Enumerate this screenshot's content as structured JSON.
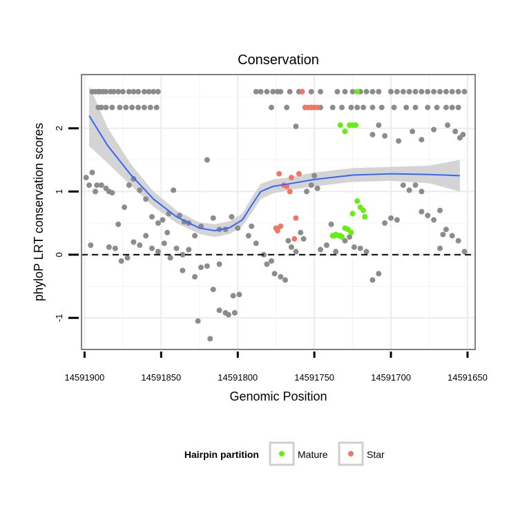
{
  "chart_data": {
    "type": "scatter",
    "title": "Conservation",
    "xlabel": "Genomic Position",
    "ylabel": "phyloP LRT conservation scores",
    "x_reversed": true,
    "xlim": [
      14591650,
      14591900
    ],
    "ylim": [
      -1.5,
      2.85
    ],
    "x_ticks": [
      14591900,
      14591850,
      14591800,
      14591750,
      14591700,
      14591650
    ],
    "x_tick_labels": [
      "14591900",
      "14591850",
      "14591800",
      "14591750",
      "14591700",
      "14591650"
    ],
    "y_ticks": [
      2,
      1,
      0,
      -1
    ],
    "y_tick_labels": [
      "2",
      "1",
      "0",
      "-1"
    ],
    "reference_line": {
      "y": 0,
      "style": "dashed"
    },
    "legend": {
      "title": "Hairpin partition",
      "position": "bottom",
      "entries": [
        {
          "label": "Mature",
          "color": "#66ee11"
        },
        {
          "label": "Star",
          "color": "#ee7766"
        }
      ]
    },
    "colors": {
      "other": "#8c8c8c",
      "mature": "#66ee11",
      "star": "#ee7766",
      "smooth": "#3366ff",
      "band": "#cccccc",
      "panel_border": "#7f7f7f"
    },
    "smooth": {
      "x": [
        14591897,
        14591885,
        14591870,
        14591855,
        14591840,
        14591825,
        14591815,
        14591805,
        14591797,
        14591791,
        14591785,
        14591777,
        14591767,
        14591750,
        14591725,
        14591700,
        14591675,
        14591655
      ],
      "y": [
        2.2,
        1.73,
        1.27,
        0.88,
        0.6,
        0.42,
        0.38,
        0.43,
        0.55,
        0.78,
        1.0,
        1.08,
        1.12,
        1.19,
        1.26,
        1.28,
        1.27,
        1.25
      ],
      "lower": [
        1.72,
        1.45,
        1.1,
        0.76,
        0.5,
        0.33,
        0.28,
        0.33,
        0.45,
        0.66,
        0.88,
        0.97,
        1.02,
        1.08,
        1.15,
        1.17,
        1.13,
        1.0
      ],
      "upper": [
        2.68,
        2.01,
        1.44,
        1.0,
        0.7,
        0.51,
        0.48,
        0.53,
        0.65,
        0.9,
        1.12,
        1.19,
        1.22,
        1.3,
        1.37,
        1.39,
        1.41,
        1.5
      ]
    },
    "points": {
      "other": {
        "x": [
          14591895,
          14591893,
          14591891,
          14591890,
          14591888,
          14591886,
          14591883,
          14591881,
          14591878,
          14591875,
          14591871,
          14591868,
          14591865,
          14591861,
          14591858,
          14591855,
          14591852,
          14591891,
          14591889,
          14591886,
          14591882,
          14591877,
          14591873,
          14591869,
          14591865,
          14591861,
          14591857,
          14591853,
          14591899,
          14591897,
          14591895,
          14591892,
          14591889,
          14591886,
          14591884,
          14591882,
          14591878,
          14591874,
          14591871,
          14591868,
          14591864,
          14591860,
          14591856,
          14591852,
          14591849,
          14591845,
          14591842,
          14591838,
          14591835,
          14591832,
          14591828,
          14591824,
          14591820,
          14591816,
          14591812,
          14591808,
          14591804,
          14591800,
          14591896,
          14591893,
          14591884,
          14591880,
          14591876,
          14591872,
          14591868,
          14591864,
          14591860,
          14591856,
          14591852,
          14591848,
          14591844,
          14591840,
          14591836,
          14591832,
          14591828,
          14591824,
          14591820,
          14591816,
          14591812,
          14591808,
          14591803,
          14591799,
          14591846,
          14591836,
          14591826,
          14591818,
          14591812,
          14591806,
          14591802,
          14591793,
          14591791,
          14591788,
          14591783,
          14591781,
          14591778,
          14591776,
          14591772,
          14591769,
          14591767,
          14591765,
          14591762,
          14591759,
          14591757,
          14591755,
          14591752,
          14591750,
          14591748,
          14591746,
          14591742,
          14591739,
          14591736,
          14591733,
          14591730,
          14591727,
          14591724,
          14591720,
          14591716,
          14591712,
          14591708,
          14591704,
          14591700,
          14591696,
          14591692,
          14591688,
          14591684,
          14591680,
          14591676,
          14591672,
          14591668,
          14591664,
          14591660,
          14591656,
          14591652,
          14591788,
          14591785,
          14591781,
          14591777,
          14591774,
          14591772,
          14591766,
          14591760,
          14591758,
          14591752,
          14591746,
          14591735,
          14591730,
          14591725,
          14591720,
          14591716,
          14591712,
          14591708,
          14591700,
          14591696,
          14591692,
          14591688,
          14591684,
          14591680,
          14591676,
          14591672,
          14591668,
          14591664,
          14591660,
          14591656,
          14591652,
          14591778,
          14591768,
          14591762,
          14591756,
          14591752,
          14591746,
          14591738,
          14591732,
          14591726,
          14591722,
          14591718,
          14591712,
          14591706,
          14591698,
          14591690,
          14591684,
          14591676,
          14591670,
          14591664,
          14591660,
          14591656,
          14591712,
          14591708,
          14591704,
          14591695,
          14591686,
          14591680,
          14591672,
          14591663,
          14591658,
          14591655,
          14591653,
          14591680,
          14591668,
          14591666
        ],
        "y": [
          2.58,
          2.58,
          2.58,
          2.58,
          2.58,
          2.58,
          2.58,
          2.58,
          2.58,
          2.58,
          2.58,
          2.58,
          2.58,
          2.58,
          2.58,
          2.58,
          2.58,
          2.33,
          2.33,
          2.33,
          2.33,
          2.33,
          2.33,
          2.33,
          2.33,
          2.33,
          2.33,
          2.33,
          1.22,
          1.1,
          1.3,
          1.1,
          1.1,
          1.05,
          1.0,
          0.98,
          0.48,
          0.75,
          1.1,
          1.2,
          1.02,
          0.88,
          0.6,
          0.5,
          0.55,
          0.65,
          1.02,
          0.62,
          0.52,
          0.5,
          0.3,
          0.45,
          1.5,
          0.58,
          0.4,
          0.4,
          0.6,
          0.42,
          0.15,
          1.0,
          0.12,
          0.1,
          -0.1,
          -0.05,
          0.2,
          0.15,
          0.3,
          0.1,
          0.05,
          0.18,
          -0.05,
          0.1,
          -0.25,
          0.08,
          -0.35,
          -0.2,
          -0.18,
          -0.55,
          -0.88,
          -0.92,
          -0.65,
          -0.63,
          0.35,
          0.0,
          -1.05,
          -1.33,
          -0.15,
          -0.95,
          -0.92,
          0.3,
          0.45,
          0.18,
          0.0,
          -0.15,
          -0.1,
          -0.3,
          -0.35,
          -0.4,
          0.22,
          0.12,
          0.05,
          0.35,
          0.25,
          1.0,
          1.1,
          1.25,
          1.05,
          0.08,
          0.15,
          0.48,
          0.05,
          0.3,
          0.22,
          0.28,
          0.12,
          0.1,
          0.05,
          -0.4,
          -0.3,
          0.5,
          0.58,
          0.55,
          1.1,
          1.02,
          1.1,
          1.0,
          0.62,
          0.55,
          0.7,
          0.4,
          0.3,
          0.22,
          0.05,
          2.58,
          2.58,
          2.58,
          2.58,
          2.58,
          2.58,
          2.58,
          2.58,
          2.58,
          2.58,
          2.58,
          2.58,
          2.58,
          2.58,
          2.58,
          2.58,
          2.58,
          2.58,
          2.58,
          2.58,
          2.58,
          2.58,
          2.58,
          2.58,
          2.58,
          2.58,
          2.58,
          2.58,
          2.58,
          2.58,
          2.58,
          2.33,
          2.33,
          2.03,
          2.33,
          2.33,
          2.33,
          2.33,
          2.33,
          2.33,
          2.33,
          2.33,
          2.33,
          2.33,
          2.33,
          2.33,
          2.33,
          2.33,
          2.33,
          2.33,
          2.33,
          2.33,
          1.9,
          2.05,
          1.88,
          1.8,
          1.95,
          1.82,
          1.98,
          2.05,
          1.95,
          1.85,
          1.9,
          0.68,
          0.1,
          0.32
        ],
        "size": 4
      },
      "mature": {
        "x": [
          14591722,
          14591733,
          14591730,
          14591727,
          14591725,
          14591723,
          14591732,
          14591722,
          14591725,
          14591720,
          14591718,
          14591717,
          14591728,
          14591730,
          14591726,
          14591733,
          14591737,
          14591736,
          14591734,
          14591738
        ],
        "y": [
          2.58,
          2.05,
          1.95,
          2.05,
          2.05,
          2.05,
          0.28,
          0.85,
          0.65,
          0.75,
          0.7,
          0.6,
          0.4,
          0.42,
          0.35,
          0.3,
          0.3,
          0.32,
          0.3,
          0.3
        ],
        "size": 4
      },
      "star": {
        "x": [
          14591758,
          14591756,
          14591754,
          14591752,
          14591750,
          14591748,
          14591765,
          14591760,
          14591773,
          14591770,
          14591768,
          14591766,
          14591775,
          14591774,
          14591772,
          14591762,
          14591763
        ],
        "y": [
          2.58,
          2.33,
          2.33,
          2.33,
          2.33,
          2.33,
          1.22,
          1.28,
          1.28,
          1.1,
          1.08,
          1.0,
          0.42,
          0.38,
          0.45,
          0.58,
          0.25
        ],
        "size": 4
      }
    }
  }
}
